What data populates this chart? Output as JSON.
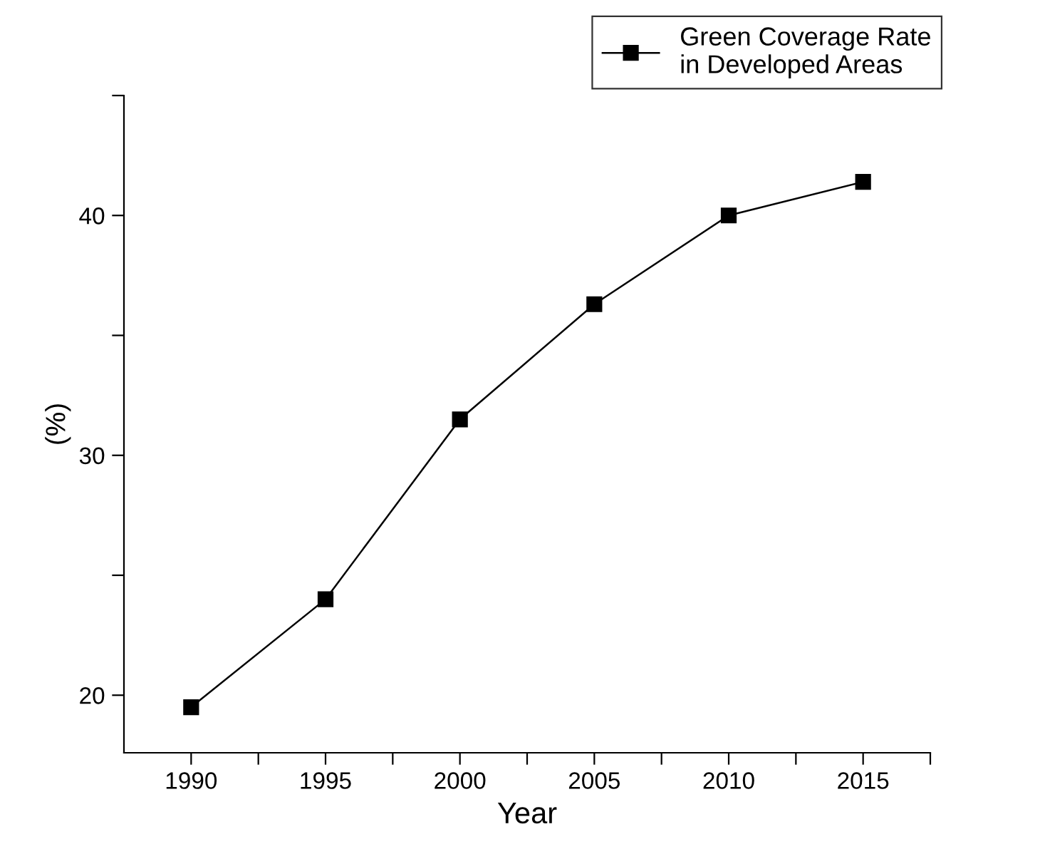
{
  "chart_data": {
    "type": "line",
    "xlabel": "Year",
    "ylabel": "(%)",
    "x": [
      1990,
      1995,
      2000,
      2005,
      2010,
      2015
    ],
    "series": [
      {
        "name": "Green Coverage Rate\nin Developed Areas",
        "color": "#000000",
        "values": [
          19.5,
          24.0,
          31.5,
          36.3,
          40.0,
          41.4
        ]
      }
    ],
    "xlim": [
      1987.5,
      2017.5
    ],
    "xticks": [
      1990,
      {
        "value": 1992.5,
        "label": null
      },
      1995,
      {
        "value": 1997.5,
        "label": null
      },
      2000,
      {
        "value": 2002.5,
        "label": null
      },
      2005,
      {
        "value": 2007.5,
        "label": null
      },
      2010,
      {
        "value": 2012.5,
        "label": null
      },
      2015,
      {
        "value": 2017.5,
        "label": null
      }
    ],
    "ylim": [
      17.6,
      45
    ],
    "yticks": [
      20,
      {
        "value": 25,
        "label": null
      },
      30,
      {
        "value": 35,
        "label": null
      },
      40,
      {
        "value": 45,
        "label": null
      }
    ],
    "marker": "square",
    "line_style": "solid",
    "grid": false,
    "legend": "top right"
  }
}
